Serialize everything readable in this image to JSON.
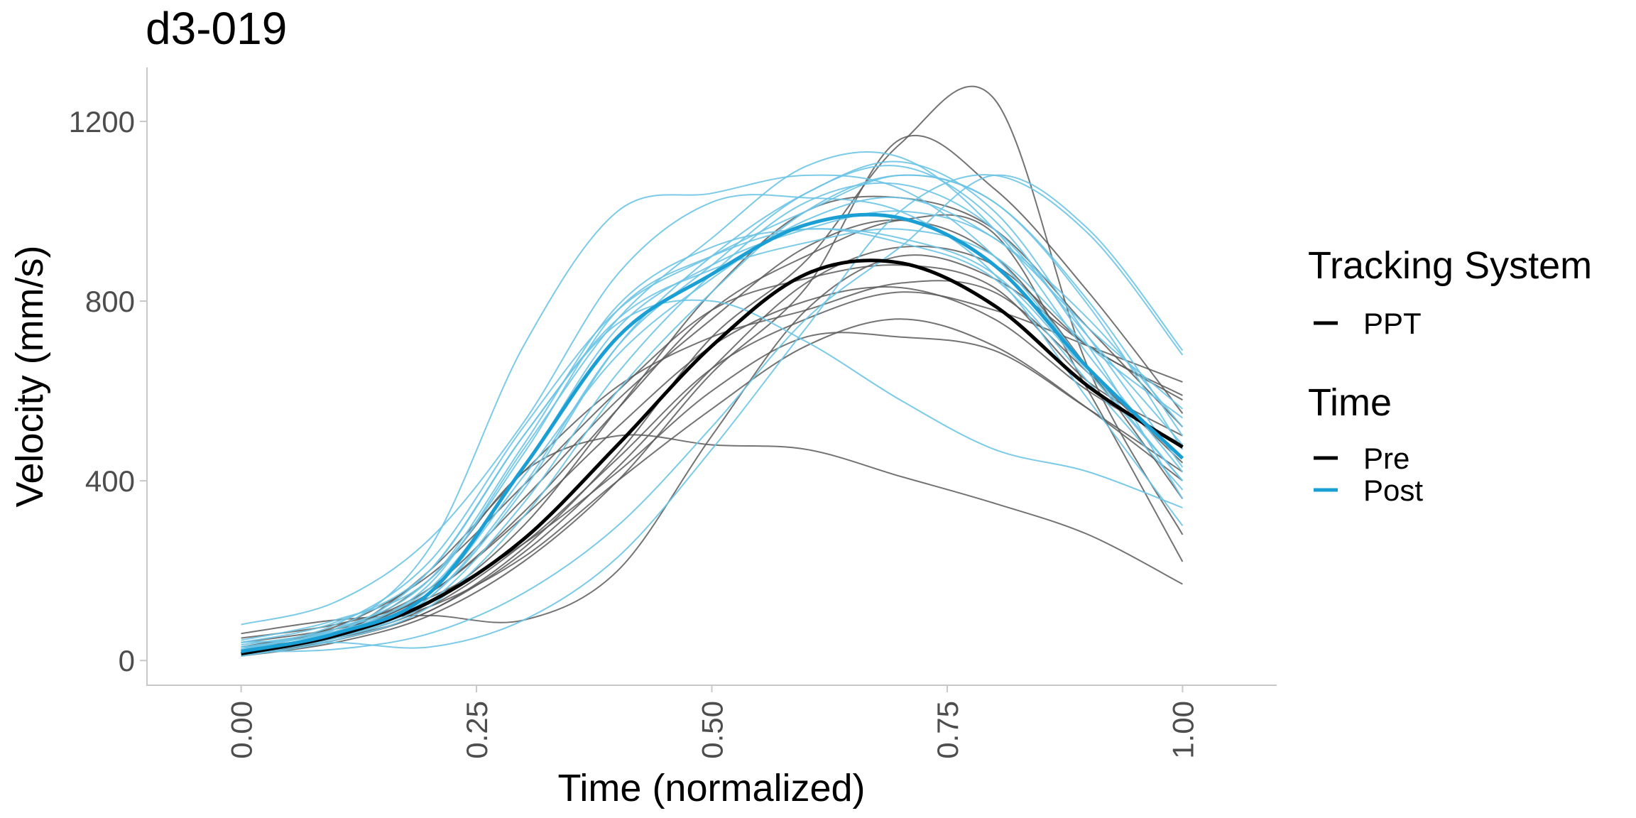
{
  "chart_data": {
    "type": "line",
    "title": "d3-019",
    "xlabel": "Time (normalized)",
    "ylabel": "Velocity (mm/s)",
    "xlim": [
      -0.1,
      1.1
    ],
    "ylim": [
      -55,
      1320
    ],
    "x_ticks": [
      0,
      0.25,
      0.5,
      0.75,
      1
    ],
    "x_tick_labels": [
      "0.00",
      "0.25",
      "0.50",
      "0.75",
      "1.00"
    ],
    "y_ticks": [
      0,
      400,
      800,
      1200
    ],
    "y_tick_labels": [
      "0",
      "400",
      "800",
      "1200"
    ],
    "grid": false,
    "legend_placement": "right",
    "legend": {
      "tracking_system_title": "Tracking System",
      "tracking_system_items": [
        "PPT"
      ],
      "time_title": "Time",
      "time_items": [
        "Pre",
        "Post"
      ]
    },
    "colors": {
      "Pre": "#000000",
      "Post": "#1a9fd4",
      "pre_trial": "#5a5a5a",
      "post_trial": "#6cc4e6"
    },
    "x": [
      0,
      0.1,
      0.2,
      0.3,
      0.4,
      0.5,
      0.6,
      0.7,
      0.8,
      0.9,
      1.0
    ],
    "series": [
      {
        "name": "Pre",
        "kind": "mean",
        "values": [
          15,
          55,
          130,
          270,
          480,
          700,
          860,
          885,
          790,
          610,
          475
        ]
      },
      {
        "name": "Post",
        "kind": "mean",
        "values": [
          20,
          60,
          150,
          430,
          720,
          860,
          970,
          985,
          880,
          650,
          450
        ]
      },
      {
        "group": "Pre",
        "kind": "trial",
        "values": [
          30,
          60,
          180,
          420,
          500,
          480,
          470,
          410,
          350,
          280,
          170
        ]
      },
      {
        "group": "Pre",
        "kind": "trial",
        "values": [
          20,
          50,
          110,
          250,
          460,
          720,
          890,
          1150,
          1250,
          650,
          280
        ]
      },
      {
        "group": "Pre",
        "kind": "trial",
        "values": [
          10,
          40,
          100,
          220,
          400,
          640,
          830,
          1160,
          1050,
          820,
          550
        ]
      },
      {
        "group": "Pre",
        "kind": "trial",
        "values": [
          50,
          80,
          140,
          260,
          420,
          600,
          720,
          720,
          690,
          560,
          420
        ]
      },
      {
        "group": "Pre",
        "kind": "trial",
        "values": [
          20,
          60,
          150,
          320,
          520,
          700,
          800,
          830,
          760,
          600,
          480
        ]
      },
      {
        "group": "Pre",
        "kind": "trial",
        "values": [
          60,
          90,
          100,
          90,
          200,
          500,
          780,
          900,
          850,
          700,
          580
        ]
      },
      {
        "group": "Pre",
        "kind": "trial",
        "values": [
          15,
          60,
          130,
          300,
          560,
          820,
          1000,
          1030,
          960,
          740,
          520
        ]
      },
      {
        "group": "Pre",
        "kind": "trial",
        "values": [
          30,
          70,
          160,
          360,
          580,
          760,
          920,
          980,
          900,
          650,
          360
        ]
      },
      {
        "group": "Pre",
        "kind": "trial",
        "values": [
          20,
          50,
          120,
          260,
          450,
          650,
          760,
          820,
          780,
          700,
          620
        ]
      },
      {
        "group": "Pre",
        "kind": "trial",
        "values": [
          10,
          55,
          200,
          420,
          610,
          720,
          780,
          840,
          820,
          640,
          440
        ]
      },
      {
        "group": "Pre",
        "kind": "trial",
        "values": [
          40,
          70,
          120,
          230,
          400,
          560,
          700,
          760,
          700,
          560,
          400
        ]
      },
      {
        "group": "Pre",
        "kind": "trial",
        "values": [
          25,
          60,
          150,
          330,
          560,
          780,
          900,
          980,
          950,
          600,
          220
        ]
      },
      {
        "group": "Pre",
        "kind": "trial",
        "values": [
          15,
          45,
          110,
          240,
          430,
          650,
          840,
          920,
          880,
          700,
          590
        ]
      },
      {
        "group": "Pre",
        "kind": "trial",
        "values": [
          30,
          75,
          190,
          390,
          600,
          780,
          850,
          880,
          830,
          620,
          500
        ]
      },
      {
        "group": "Post",
        "kind": "trial",
        "values": [
          80,
          130,
          270,
          530,
          860,
          1020,
          1030,
          1000,
          860,
          580,
          300
        ]
      },
      {
        "group": "Post",
        "kind": "trial",
        "values": [
          40,
          70,
          250,
          700,
          1000,
          1040,
          1080,
          1050,
          900,
          650,
          400
        ]
      },
      {
        "group": "Post",
        "kind": "trial",
        "values": [
          20,
          25,
          60,
          150,
          300,
          520,
          760,
          920,
          1080,
          960,
          690
        ]
      },
      {
        "group": "Post",
        "kind": "trial",
        "values": [
          30,
          40,
          30,
          90,
          230,
          470,
          740,
          1000,
          1080,
          950,
          680
        ]
      },
      {
        "group": "Post",
        "kind": "trial",
        "values": [
          10,
          60,
          200,
          500,
          750,
          800,
          710,
          580,
          470,
          420,
          340
        ]
      },
      {
        "group": "Post",
        "kind": "trial",
        "values": [
          25,
          80,
          220,
          520,
          780,
          900,
          1000,
          1080,
          1020,
          800,
          500
        ]
      },
      {
        "group": "Post",
        "kind": "trial",
        "values": [
          15,
          55,
          140,
          380,
          700,
          900,
          1040,
          1110,
          1000,
          720,
          430
        ]
      },
      {
        "group": "Post",
        "kind": "trial",
        "values": [
          35,
          70,
          160,
          430,
          740,
          880,
          960,
          1000,
          940,
          740,
          560
        ]
      },
      {
        "group": "Post",
        "kind": "trial",
        "values": [
          20,
          50,
          130,
          350,
          640,
          860,
          1020,
          1060,
          960,
          720,
          480
        ]
      },
      {
        "group": "Post",
        "kind": "trial",
        "values": [
          45,
          90,
          180,
          460,
          780,
          900,
          960,
          930,
          850,
          620,
          380
        ]
      },
      {
        "group": "Post",
        "kind": "trial",
        "values": [
          20,
          60,
          170,
          470,
          760,
          940,
          1100,
          1120,
          960,
          680,
          420
        ]
      },
      {
        "group": "Post",
        "kind": "trial",
        "values": [
          30,
          65,
          150,
          410,
          680,
          850,
          980,
          1030,
          940,
          760,
          520
        ]
      },
      {
        "group": "Post",
        "kind": "trial",
        "values": [
          10,
          45,
          120,
          320,
          600,
          820,
          1000,
          1080,
          1020,
          790,
          470
        ]
      },
      {
        "group": "Post",
        "kind": "trial",
        "values": [
          25,
          70,
          180,
          480,
          790,
          920,
          960,
          940,
          860,
          640,
          400
        ]
      },
      {
        "group": "Post",
        "kind": "trial",
        "values": [
          15,
          50,
          140,
          390,
          700,
          880,
          1040,
          1100,
          980,
          700,
          360
        ]
      },
      {
        "group": "Post",
        "kind": "trial",
        "values": [
          40,
          85,
          200,
          500,
          760,
          870,
          930,
          960,
          900,
          700,
          540
        ]
      }
    ]
  }
}
